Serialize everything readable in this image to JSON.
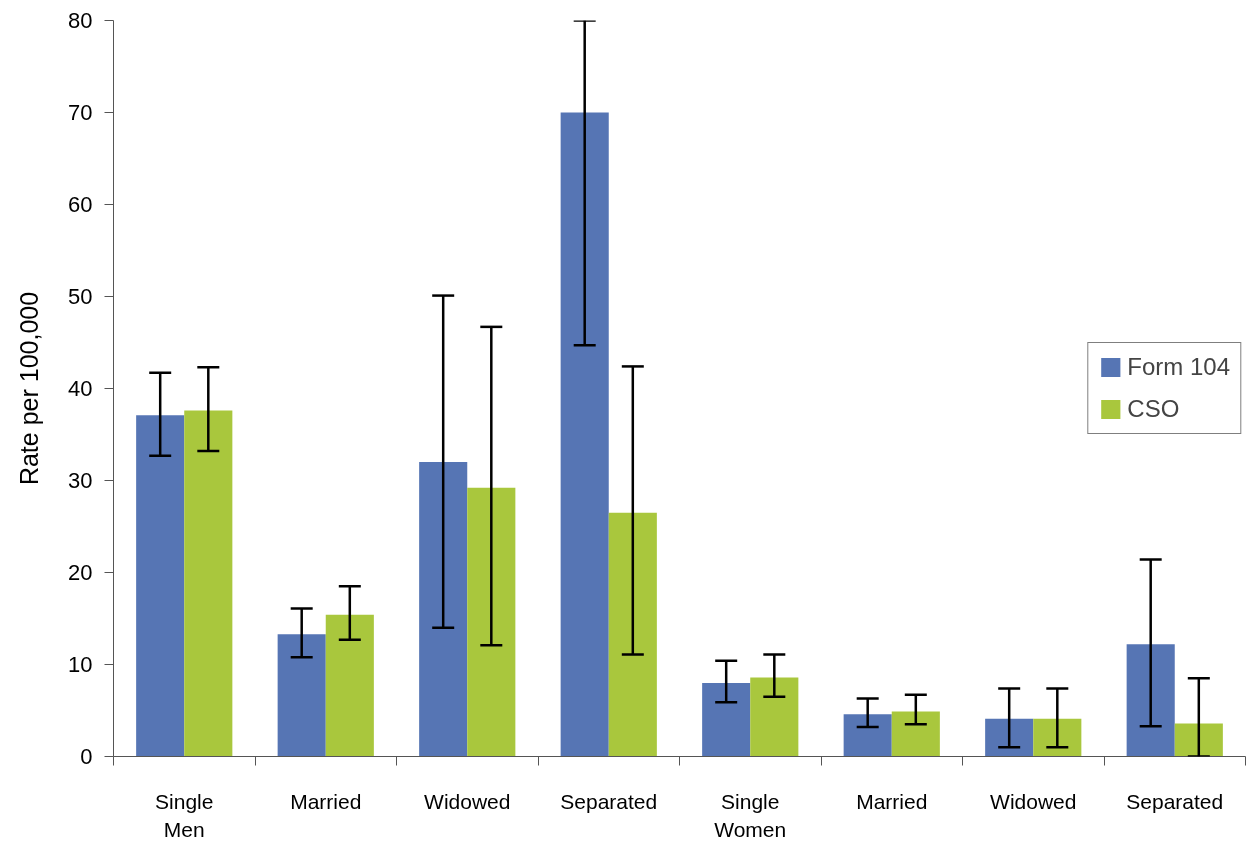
{
  "chart_data": {
    "type": "bar",
    "ylabel": "Rate per 100,000",
    "categories": [
      "Single\nMen",
      "Married",
      "Widowed",
      "Separated",
      "Single\nWomen",
      "Married",
      "Widowed",
      "Separated"
    ],
    "series": [
      {
        "name": "Form 104",
        "color": "#5675b4",
        "values": [
          37.1,
          13.3,
          32.0,
          70.0,
          8.0,
          4.6,
          4.1,
          12.2
        ],
        "errors": [
          [
            32.7,
            41.7
          ],
          [
            10.8,
            16.1
          ],
          [
            14.0,
            50.1
          ],
          [
            44.7,
            80
          ],
          [
            5.9,
            10.4
          ],
          [
            3.2,
            6.3
          ],
          [
            1.0,
            7.4
          ],
          [
            3.3,
            21.4
          ]
        ]
      },
      {
        "name": "CSO",
        "color": "#a9c73d",
        "values": [
          37.6,
          15.4,
          29.2,
          26.5,
          8.6,
          4.9,
          4.1,
          3.6
        ],
        "errors": [
          [
            33.2,
            42.3
          ],
          [
            12.7,
            18.5
          ],
          [
            12.1,
            46.7
          ],
          [
            11.1,
            42.4
          ],
          [
            6.5,
            11.1
          ],
          [
            3.5,
            6.7
          ],
          [
            1.0,
            7.4
          ],
          [
            0,
            8.5
          ]
        ]
      }
    ],
    "ylim": [
      0,
      80
    ],
    "yticks": [
      0,
      10,
      20,
      30,
      40,
      50,
      60,
      70,
      80
    ],
    "legend": "right"
  }
}
